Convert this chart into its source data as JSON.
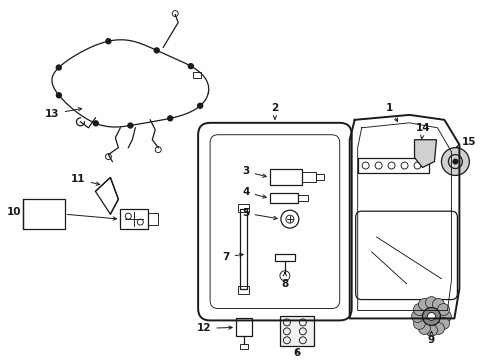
{
  "bg_color": "#ffffff",
  "line_color": "#1a1a1a",
  "fig_width": 4.89,
  "fig_height": 3.6,
  "dpi": 100,
  "label_fontsize": 7.5
}
